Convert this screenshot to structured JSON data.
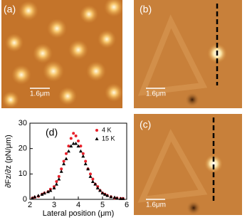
{
  "panels": [
    {
      "label": "(a)",
      "scale_bar": "1.6μm"
    },
    {
      "label": "(b)",
      "scale_bar": "1.6μm"
    },
    {
      "label": "(c)",
      "scale_bar": "1.6μm"
    }
  ],
  "chart_data": {
    "type": "scatter",
    "label": "(d)",
    "x_label": "Lateral position (μm)",
    "y_label": "∂Fz/∂z (pN/μm)",
    "xlim": [
      2,
      6
    ],
    "xticks": [
      2,
      3,
      4,
      5,
      6
    ],
    "ylim": [
      0,
      30
    ],
    "yticks": [
      0,
      10,
      20,
      30
    ],
    "legend": "upper right",
    "series": [
      {
        "name": "4 K",
        "color": "#e8202a",
        "marker": "circle",
        "x": [
          2.1,
          2.2,
          2.35,
          2.5,
          2.6,
          2.75,
          2.85,
          3.0,
          3.1,
          3.2,
          3.3,
          3.4,
          3.5,
          3.6,
          3.7,
          3.8,
          3.9,
          4.0,
          4.1,
          4.2,
          4.3,
          4.4,
          4.5,
          4.6,
          4.7,
          4.8,
          4.9,
          5.0,
          5.1,
          5.2,
          5.35,
          5.5,
          5.6,
          5.75,
          5.85
        ],
        "values": [
          0.5,
          0.8,
          1.2,
          2,
          2.5,
          3,
          4,
          5,
          7,
          9,
          12,
          15,
          18,
          21,
          24,
          26,
          25,
          23,
          21,
          18,
          15,
          12,
          10,
          8,
          6,
          5,
          3.5,
          2.5,
          2,
          1.5,
          1,
          0.5,
          0.5,
          0.3,
          0.3
        ]
      },
      {
        "name": "15 K",
        "color": "#000000",
        "marker": "triangle",
        "x": [
          2.1,
          2.2,
          2.35,
          2.5,
          2.6,
          2.75,
          2.85,
          3.0,
          3.1,
          3.2,
          3.3,
          3.4,
          3.5,
          3.6,
          3.7,
          3.8,
          3.9,
          4.0,
          4.1,
          4.2,
          4.3,
          4.4,
          4.5,
          4.6,
          4.7,
          4.8,
          4.9,
          5.0,
          5.1,
          5.2,
          5.35,
          5.5,
          5.6,
          5.75,
          5.85
        ],
        "values": [
          0.5,
          1,
          1.5,
          2,
          2.5,
          3,
          3.5,
          4.5,
          6,
          8,
          11,
          14,
          16,
          19,
          21,
          22,
          22,
          21,
          19,
          17,
          14,
          12,
          9,
          7,
          6,
          4.5,
          3.5,
          2.5,
          2,
          1.5,
          1,
          0.8,
          0.5,
          0.3,
          0.3
        ]
      }
    ]
  }
}
